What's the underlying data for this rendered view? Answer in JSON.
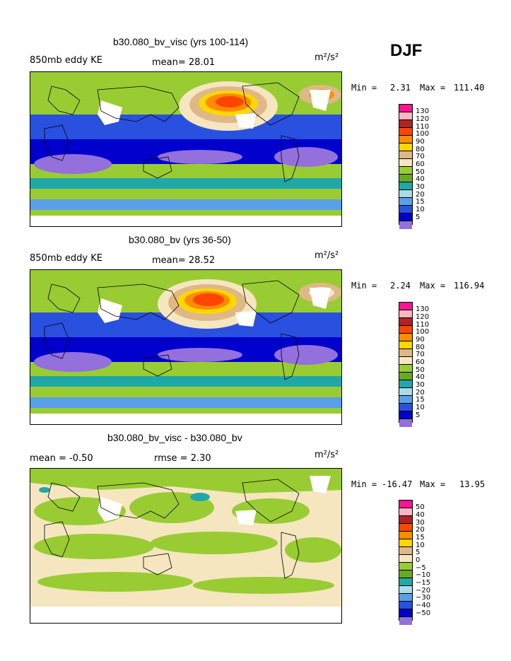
{
  "season": "DJF",
  "panels": [
    {
      "title": "b30.080_bv_visc (yrs 100-114)",
      "left_label": "850mb eddy KE",
      "center_label": "mean=  28.01",
      "right_label": "m²/s²",
      "min_label": "Min =",
      "min_value": "2.31",
      "max_label": "Max =",
      "max_value": "111.40",
      "levels": [
        "130",
        "120",
        "110",
        "100",
        "90",
        "80",
        "70",
        "60",
        "50",
        "40",
        "30",
        "20",
        "15",
        "10",
        "5"
      ]
    },
    {
      "title": "b30.080_bv (yrs 36-50)",
      "left_label": "850mb eddy KE",
      "center_label": "mean=  28.52",
      "right_label": "m²/s²",
      "min_label": "Min =",
      "min_value": "2.24",
      "max_label": "Max =",
      "max_value": "116.94",
      "levels": [
        "130",
        "120",
        "110",
        "100",
        "90",
        "80",
        "70",
        "60",
        "50",
        "40",
        "30",
        "20",
        "15",
        "10",
        "5"
      ]
    },
    {
      "title": "b30.080_bv_visc - b30.080_bv",
      "left_label": "mean =   -0.50",
      "center_label": "rmse =     2.30",
      "right_label": "m²/s²",
      "min_label": "Min =",
      "min_value": "-16.47",
      "max_label": "Max =",
      "max_value": "13.95",
      "levels": [
        "50",
        "40",
        "30",
        "20",
        "15",
        "10",
        "5",
        "0",
        "−5",
        "−10",
        "−15",
        "−20",
        "−30",
        "−40",
        "−50"
      ]
    }
  ],
  "colors": {
    "scale": [
      "#ff1493",
      "#ffb6c1",
      "#b22222",
      "#ff4500",
      "#ff8c00",
      "#ffd700",
      "#dfb887",
      "#f5e6c0",
      "#99cc33",
      "#66aa22",
      "#20a8a8",
      "#aadbe8",
      "#5aa0e8",
      "#2a50e0",
      "#0000cc",
      "#9370db"
    ]
  }
}
